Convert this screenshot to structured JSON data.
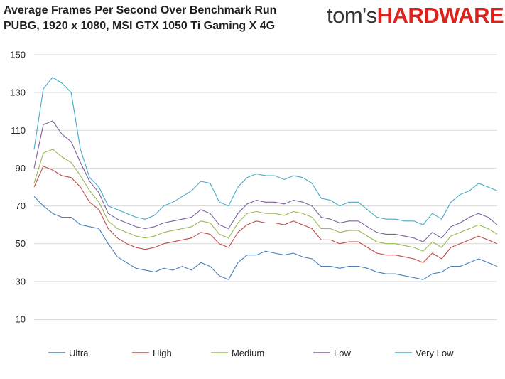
{
  "title": {
    "line1": "Average Frames Per Second Over Benchmark Run",
    "line2": "PUBG, 1920 x 1080, MSI GTX 1050 Ti Gaming X 4G"
  },
  "logo": {
    "part1": "tom's",
    "part2": "HARDWARE"
  },
  "chart_data": {
    "type": "line",
    "title": "Average Frames Per Second Over Benchmark Run",
    "subtitle": "PUBG, 1920 x 1080, MSI GTX 1050 Ti Gaming X 4G",
    "xlabel": "",
    "ylabel": "",
    "ylim": [
      10,
      150
    ],
    "yticks": [
      10,
      30,
      50,
      70,
      90,
      110,
      130,
      150
    ],
    "grid": true,
    "legend_position": "bottom",
    "x": [
      0,
      4,
      8,
      12,
      16,
      20,
      24,
      28,
      32,
      36,
      40,
      44,
      48,
      52,
      56,
      60,
      64,
      68,
      72,
      76,
      80,
      84,
      88,
      92,
      96,
      100,
      104,
      108,
      112,
      116,
      120,
      124,
      128,
      132,
      136,
      140,
      144,
      148,
      152,
      156,
      160,
      164,
      168,
      172,
      176,
      180,
      184,
      188,
      192,
      196,
      200
    ],
    "series": [
      {
        "name": "Ultra",
        "color": "#4a7ebb",
        "values": [
          75,
          70,
          66,
          64,
          64,
          60,
          59,
          58,
          50,
          43,
          40,
          37,
          36,
          35,
          37,
          36,
          38,
          36,
          40,
          38,
          33,
          31,
          40,
          44,
          44,
          46,
          45,
          44,
          45,
          43,
          42,
          38,
          38,
          37,
          38,
          38,
          37,
          35,
          34,
          34,
          33,
          32,
          31,
          34,
          35,
          38,
          38,
          40,
          42,
          40,
          38
        ]
      },
      {
        "name": "High",
        "color": "#be4b48",
        "values": [
          80,
          91,
          89,
          86,
          85,
          80,
          72,
          68,
          58,
          53,
          50,
          48,
          47,
          48,
          50,
          51,
          52,
          53,
          56,
          55,
          50,
          48,
          56,
          60,
          62,
          61,
          61,
          60,
          62,
          60,
          58,
          52,
          52,
          50,
          51,
          51,
          48,
          45,
          44,
          44,
          43,
          42,
          40,
          45,
          42,
          48,
          50,
          52,
          54,
          52,
          50
        ]
      },
      {
        "name": "Medium",
        "color": "#98b954",
        "values": [
          82,
          98,
          100,
          96,
          93,
          86,
          78,
          72,
          62,
          58,
          56,
          54,
          53,
          54,
          56,
          57,
          58,
          59,
          62,
          61,
          55,
          53,
          61,
          66,
          67,
          66,
          66,
          65,
          67,
          66,
          64,
          58,
          58,
          56,
          57,
          57,
          54,
          51,
          50,
          50,
          49,
          48,
          46,
          51,
          48,
          54,
          56,
          58,
          60,
          58,
          55
        ]
      },
      {
        "name": "Low",
        "color": "#7d60a0",
        "values": [
          90,
          113,
          115,
          108,
          104,
          93,
          83,
          77,
          66,
          63,
          61,
          59,
          58,
          59,
          61,
          62,
          63,
          64,
          68,
          66,
          60,
          58,
          66,
          71,
          73,
          72,
          72,
          71,
          73,
          72,
          70,
          64,
          63,
          61,
          62,
          62,
          59,
          56,
          55,
          55,
          54,
          53,
          51,
          56,
          53,
          59,
          61,
          64,
          66,
          64,
          60
        ]
      },
      {
        "name": "Very Low",
        "color": "#46aac5",
        "values": [
          100,
          132,
          138,
          135,
          130,
          100,
          85,
          80,
          70,
          68,
          66,
          64,
          63,
          65,
          70,
          72,
          75,
          78,
          83,
          82,
          72,
          70,
          80,
          85,
          87,
          86,
          86,
          84,
          86,
          85,
          82,
          74,
          73,
          70,
          72,
          72,
          68,
          64,
          63,
          63,
          62,
          62,
          60,
          66,
          63,
          72,
          76,
          78,
          82,
          80,
          78
        ]
      }
    ]
  }
}
